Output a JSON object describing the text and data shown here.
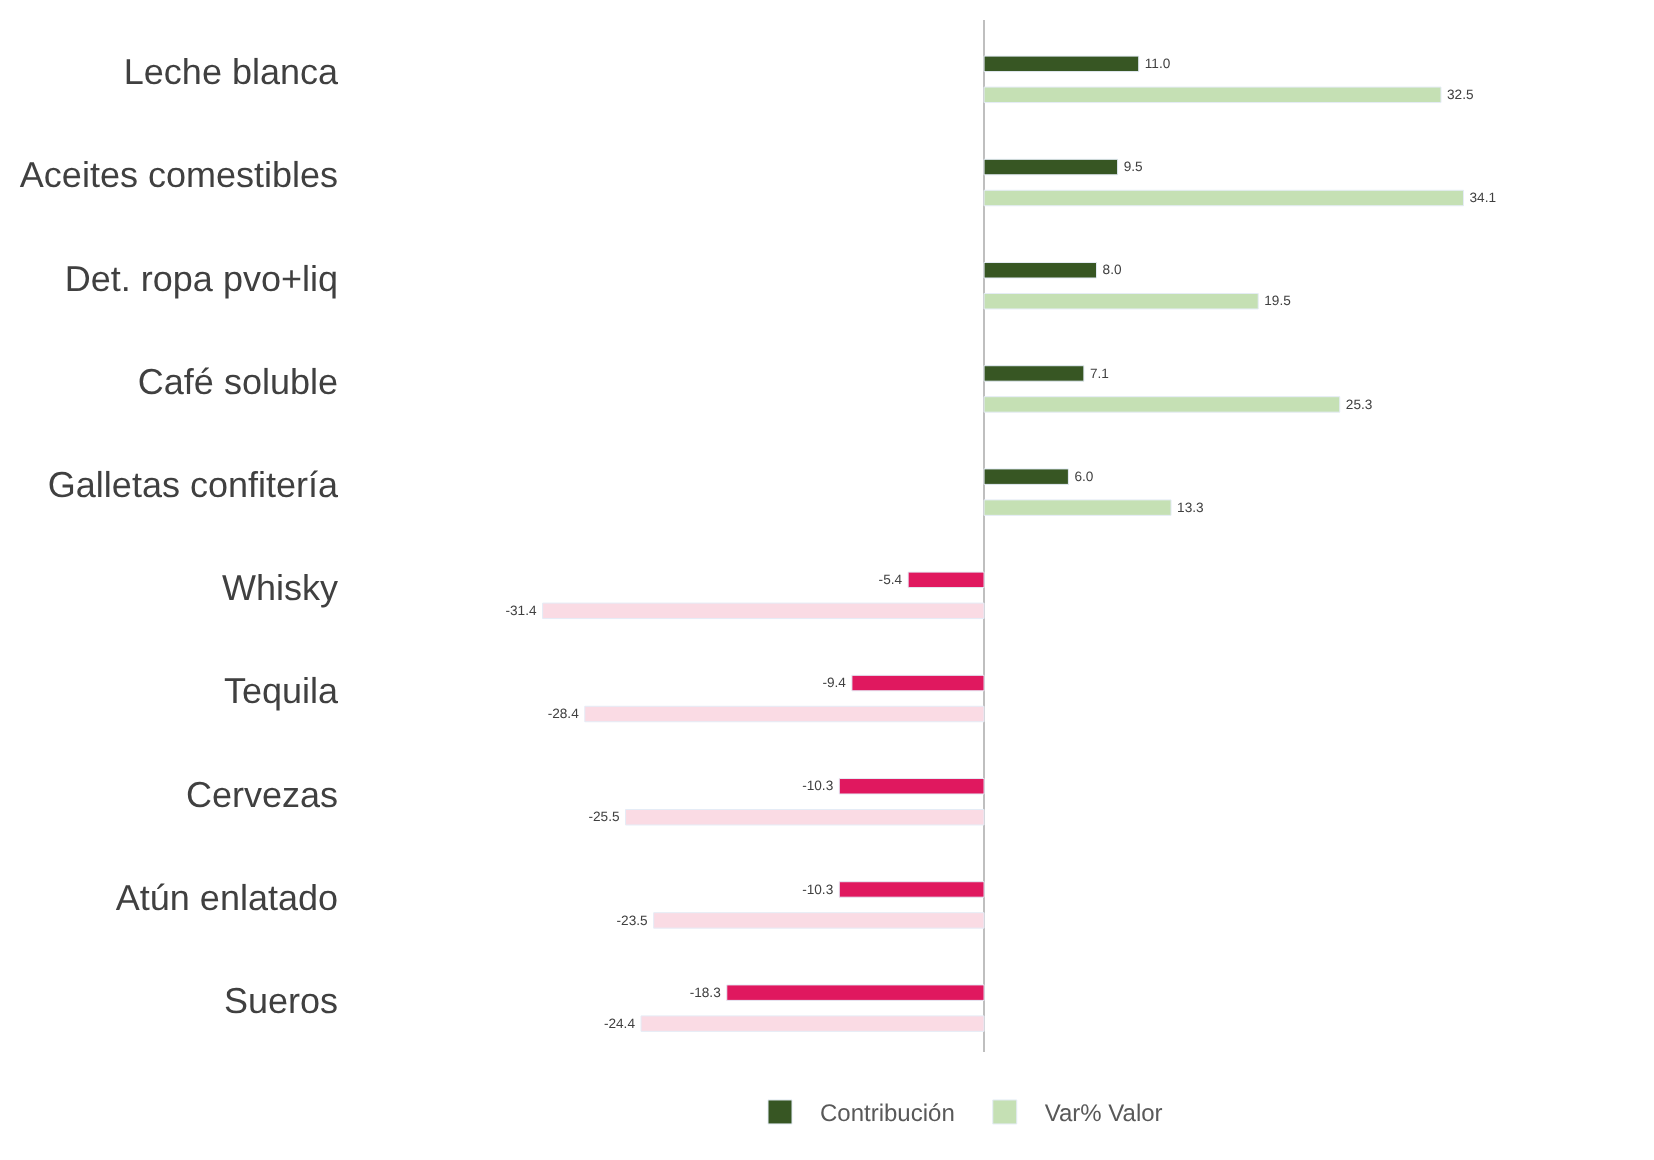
{
  "chart_data": {
    "type": "bar",
    "orientation": "horizontal",
    "legend": "bottom",
    "categories": [
      "Leche blanca",
      "Aceites comestibles",
      "Det. ropa pvo+liq",
      "Café soluble",
      "Galletas confitería",
      "Whisky",
      "Tequila",
      "Cervezas",
      "Atún enlatado",
      "Sueros"
    ],
    "series": [
      {
        "name": "Contribución",
        "color": "#375623",
        "colors": [
          "#375623",
          "#375623",
          "#375623",
          "#375623",
          "#375623",
          "#e0185f",
          "#e0185f",
          "#e0185f",
          "#e0185f",
          "#e0185f"
        ],
        "values": [
          11.0,
          9.5,
          8.0,
          7.1,
          6.0,
          -5.4,
          -9.4,
          -10.3,
          -10.3,
          -18.3
        ],
        "value_labels": [
          "11.0",
          "9.5",
          "8.0",
          "7.1",
          "6.0",
          "-5.4",
          "-9.4",
          "-10.3",
          "-10.3",
          "-18.3"
        ]
      },
      {
        "name": "Var% Valor",
        "color": "#c5e0b4",
        "colors": [
          "#c5e0b4",
          "#c5e0b4",
          "#c5e0b4",
          "#c5e0b4",
          "#c5e0b4",
          "#fadbe4",
          "#fadbe4",
          "#fadbe4",
          "#fadbe4",
          "#fadbe4"
        ],
        "values": [
          32.5,
          34.1,
          19.5,
          25.3,
          13.3,
          -31.4,
          -28.4,
          -25.5,
          -23.5,
          -24.4
        ],
        "value_labels": [
          "32.5",
          "34.1",
          "19.5",
          "25.3",
          "13.3",
          "-31.4",
          "-28.4",
          "-25.5",
          "-23.5",
          "-24.4"
        ]
      }
    ]
  }
}
